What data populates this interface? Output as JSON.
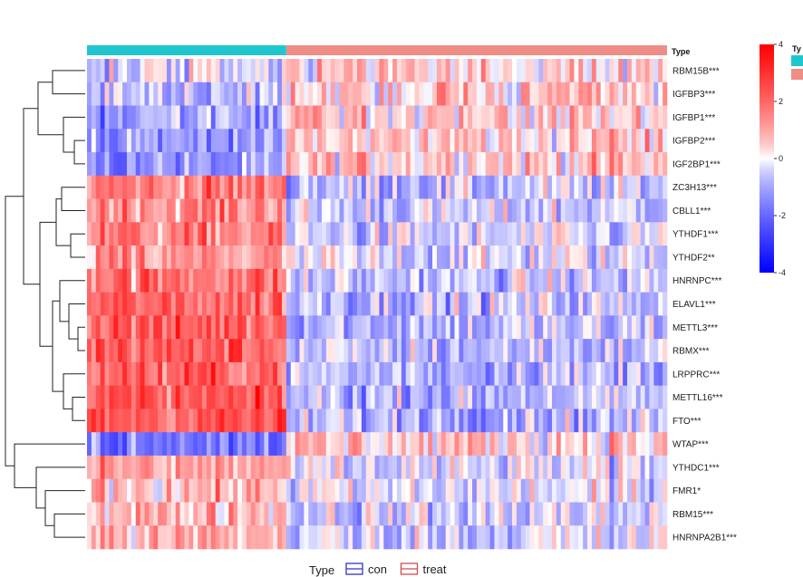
{
  "chart_data": {
    "type": "heatmap",
    "annotation_title": "Type",
    "groups": [
      {
        "name": "con",
        "color": "#20C6CF",
        "n_samples": 45
      },
      {
        "name": "treat",
        "color": "#EE8C86",
        "n_samples": 86
      }
    ],
    "rows": [
      {
        "gene": "RBM15B",
        "stars": "***",
        "con_mean": -0.4,
        "treat_mean": 0.3
      },
      {
        "gene": "IGFBP3",
        "stars": "***",
        "con_mean": -0.7,
        "treat_mean": 0.4
      },
      {
        "gene": "IGFBP1",
        "stars": "***",
        "con_mean": -1.0,
        "treat_mean": 0.5
      },
      {
        "gene": "IGFBP2",
        "stars": "***",
        "con_mean": -1.3,
        "treat_mean": 0.6
      },
      {
        "gene": "IGF2BP1",
        "stars": "***",
        "con_mean": -1.4,
        "treat_mean": 0.6
      },
      {
        "gene": "ZC3H13",
        "stars": "***",
        "con_mean": 1.6,
        "treat_mean": -0.6
      },
      {
        "gene": "CBLL1",
        "stars": "***",
        "con_mean": 1.5,
        "treat_mean": -0.5
      },
      {
        "gene": "YTHDF1",
        "stars": "***",
        "con_mean": 1.5,
        "treat_mean": -0.5
      },
      {
        "gene": "YTHDF2",
        "stars": "**",
        "con_mean": 1.1,
        "treat_mean": -0.3
      },
      {
        "gene": "HNRNPC",
        "stars": "***",
        "con_mean": 1.9,
        "treat_mean": -0.6
      },
      {
        "gene": "ELAVL1",
        "stars": "***",
        "con_mean": 2.0,
        "treat_mean": -0.6
      },
      {
        "gene": "METTL3",
        "stars": "***",
        "con_mean": 2.2,
        "treat_mean": -0.7
      },
      {
        "gene": "RBMX",
        "stars": "***",
        "con_mean": 2.2,
        "treat_mean": -0.7
      },
      {
        "gene": "LRPPRC",
        "stars": "***",
        "con_mean": 2.1,
        "treat_mean": -0.7
      },
      {
        "gene": "METTL16",
        "stars": "***",
        "con_mean": 2.1,
        "treat_mean": -0.7
      },
      {
        "gene": "FTO",
        "stars": "***",
        "con_mean": 2.3,
        "treat_mean": -0.7
      },
      {
        "gene": "WTAP",
        "stars": "***",
        "con_mean": -1.5,
        "treat_mean": 0.5
      },
      {
        "gene": "YTHDC1",
        "stars": "***",
        "con_mean": 1.0,
        "treat_mean": -0.4
      },
      {
        "gene": "FMR1",
        "stars": "*",
        "con_mean": 0.8,
        "treat_mean": -0.3
      },
      {
        "gene": "RBM15",
        "stars": "***",
        "con_mean": 0.9,
        "treat_mean": -0.4
      },
      {
        "gene": "HNRNPA2B1",
        "stars": "***",
        "con_mean": 0.8,
        "treat_mean": -0.4
      }
    ],
    "color_scale": {
      "min": -4,
      "max": 4,
      "ticks": [
        4,
        2,
        0,
        -2,
        -4
      ],
      "low_color": "#0000FF",
      "mid_color": "#FFFFFF",
      "high_color": "#FF0000"
    },
    "legend": {
      "title": "Type",
      "items": [
        "con",
        "treat"
      ],
      "position": "bottom"
    },
    "side_legend_title_fragment": "Ty"
  }
}
